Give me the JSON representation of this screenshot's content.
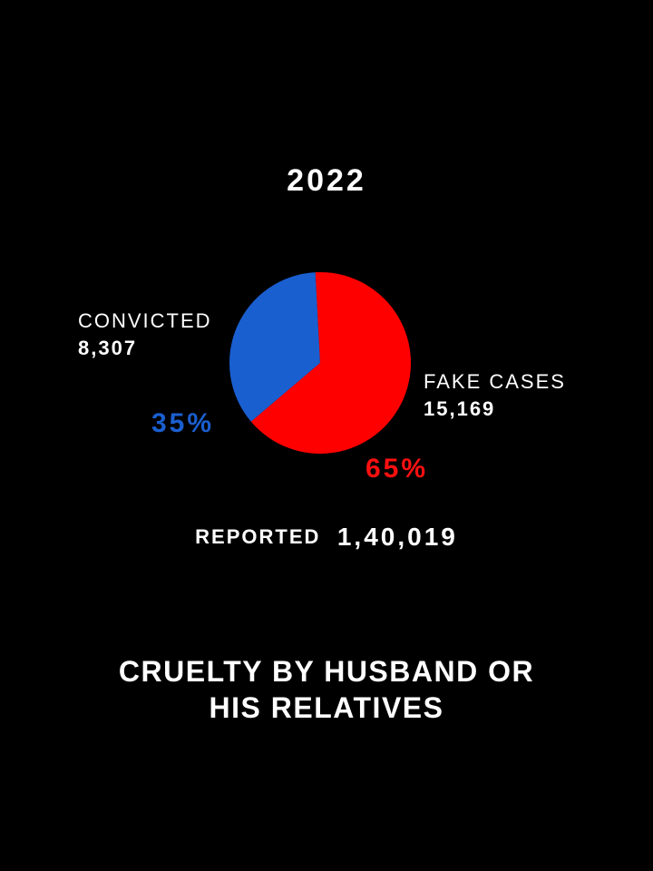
{
  "chart_data": {
    "type": "pie",
    "title": "2022",
    "slices": [
      {
        "label": "CONVICTED",
        "value": 8307,
        "value_text": "8,307",
        "percent_text": "35%",
        "color": "#1a5fd0"
      },
      {
        "label": "FAKE CASES",
        "value": 15169,
        "value_text": "15,169",
        "percent_text": "65%",
        "color": "#ff0000"
      }
    ],
    "total_label": "REPORTED",
    "total_value": "1,40,019",
    "caption_lines": [
      "CRUELTY BY HUSBAND OR",
      "HIS RELATIVES"
    ]
  }
}
